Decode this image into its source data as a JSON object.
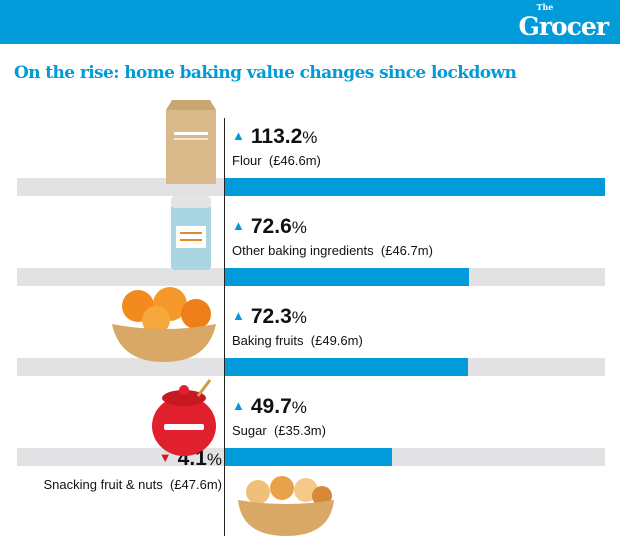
{
  "header": {
    "logo_small": "The",
    "logo": "Grocer"
  },
  "title": "On the rise: home baking value changes since lockdown",
  "colors": {
    "up": "#009bd8",
    "down": "#d71920",
    "bar": "#009bd8",
    "track": "#e2e2e4"
  },
  "chart_data": {
    "type": "bar",
    "title": "On the rise: home baking value changes since lockdown",
    "unit": "%",
    "categories": [
      "Flour",
      "Other baking ingredients",
      "Baking fruits",
      "Sugar",
      "Snacking fruit & nuts"
    ],
    "values": [
      113.2,
      72.6,
      72.3,
      49.7,
      -4.1
    ],
    "value_labels": [
      "113.2",
      "72.6",
      "72.3",
      "49.7",
      "4.1"
    ],
    "sales": [
      "(£46.6m)",
      "(£46.7m)",
      "(£49.6m)",
      "(£35.3m)",
      "(£47.6m)"
    ],
    "xlim": [
      0,
      113.2
    ]
  }
}
